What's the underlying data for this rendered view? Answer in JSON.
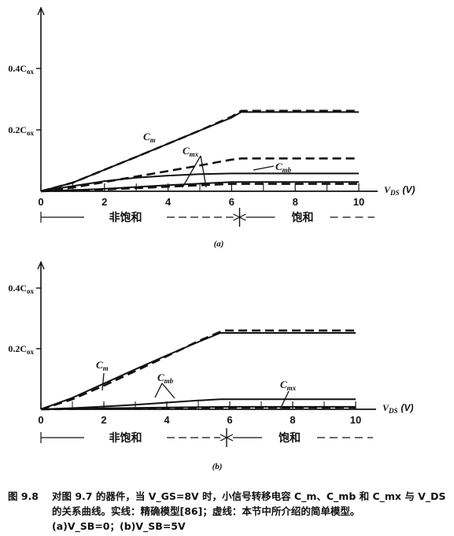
{
  "chart_data": [
    {
      "type": "line",
      "panel_label": "(a)",
      "xlabel": "V_DS (V)",
      "xlabel_main": "V",
      "xlabel_sub": "DS",
      "xlabel_unit": "(V)",
      "xlim": [
        0,
        10.5
      ],
      "ylim": [
        0,
        0.5
      ],
      "x_ticks": [
        "0",
        "2",
        "4",
        "6",
        "8",
        "10"
      ],
      "y_ticks": [
        "0.2C",
        "0.4C"
      ],
      "y_tick_sub": "ox",
      "y_tick_values": [
        0.2,
        0.4
      ],
      "regions": [
        "非饱和",
        "饱和"
      ],
      "region_boundary": 6.25,
      "series": [
        {
          "name": "C_m",
          "style": "solid",
          "x": [
            0,
            1,
            2,
            3,
            4,
            5,
            6,
            6.3,
            8,
            10
          ],
          "y": [
            0,
            0.028,
            0.07,
            0.112,
            0.155,
            0.198,
            0.24,
            0.258,
            0.258,
            0.258
          ]
        },
        {
          "name": "C_m",
          "style": "dashed",
          "x": [
            0,
            1,
            2,
            3,
            4,
            5,
            6,
            6.3,
            8,
            10
          ],
          "y": [
            0,
            0.028,
            0.07,
            0.112,
            0.155,
            0.198,
            0.243,
            0.262,
            0.262,
            0.262
          ]
        },
        {
          "name": "C_mb",
          "style": "dashed",
          "x": [
            0,
            1,
            2,
            3,
            4,
            5,
            6,
            6.3,
            8,
            10
          ],
          "y": [
            0,
            0.012,
            0.03,
            0.048,
            0.066,
            0.084,
            0.103,
            0.107,
            0.107,
            0.107
          ]
        },
        {
          "name": "C_mb",
          "style": "solid",
          "x": [
            0,
            1,
            2,
            3,
            4,
            5,
            6,
            6.3,
            8,
            10
          ],
          "y": [
            0,
            0.017,
            0.033,
            0.044,
            0.051,
            0.056,
            0.058,
            0.058,
            0.058,
            0.058
          ]
        },
        {
          "name": "C_mx",
          "style": "solid",
          "x": [
            0,
            2,
            4,
            6,
            8,
            10
          ],
          "y": [
            0,
            0.008,
            0.02,
            0.03,
            0.03,
            0.03
          ]
        },
        {
          "name": "C_mx",
          "style": "dashed",
          "x": [
            0,
            2,
            4,
            6,
            8,
            10
          ],
          "y": [
            0,
            0.006,
            0.015,
            0.024,
            0.024,
            0.024
          ]
        }
      ],
      "annotations": [
        {
          "base": "C",
          "sub": "m"
        },
        {
          "base": "C",
          "sub": "mx"
        },
        {
          "base": "C",
          "sub": "mb"
        }
      ]
    },
    {
      "type": "line",
      "panel_label": "(b)",
      "xlabel": "V_DS (V)",
      "xlabel_main": "V",
      "xlabel_sub": "DS",
      "xlabel_unit": "(V)",
      "xlim": [
        0,
        10.5
      ],
      "ylim": [
        0,
        0.5
      ],
      "x_ticks": [
        "0",
        "2",
        "4",
        "6",
        "8",
        "10"
      ],
      "y_ticks": [
        "0.2C",
        "0.4C"
      ],
      "y_tick_sub": "ox",
      "y_tick_values": [
        0.2,
        0.4
      ],
      "regions": [
        "非饱和",
        "饱和"
      ],
      "region_boundary": 5.9,
      "series": [
        {
          "name": "C_m",
          "style": "solid",
          "x": [
            0,
            1,
            2,
            3,
            4,
            5,
            5.7,
            8,
            10
          ],
          "y": [
            0,
            0.038,
            0.085,
            0.132,
            0.178,
            0.222,
            0.252,
            0.252,
            0.252
          ]
        },
        {
          "name": "C_m",
          "style": "dashed",
          "x": [
            0,
            1,
            2,
            3,
            4,
            5,
            5.8,
            8,
            10
          ],
          "y": [
            0,
            0.033,
            0.078,
            0.126,
            0.175,
            0.225,
            0.26,
            0.26,
            0.26
          ]
        },
        {
          "name": "C_mb",
          "style": "solid",
          "x": [
            0,
            1,
            2,
            3,
            4,
            5,
            5.7,
            8,
            10
          ],
          "y": [
            0,
            0.004,
            0.009,
            0.015,
            0.022,
            0.029,
            0.033,
            0.033,
            0.033
          ]
        },
        {
          "name": "C_mx",
          "style": "solid",
          "x": [
            0,
            2,
            4,
            6,
            8,
            10
          ],
          "y": [
            0,
            0.003,
            0.006,
            0.008,
            0.008,
            0.008
          ]
        },
        {
          "name": "C_mx",
          "style": "dashed",
          "x": [
            0,
            2,
            4,
            6,
            8,
            10
          ],
          "y": [
            0,
            0.002,
            0.004,
            0.006,
            0.006,
            0.006
          ]
        }
      ],
      "annotations": [
        {
          "base": "C",
          "sub": "m"
        },
        {
          "base": "C",
          "sub": "mb"
        },
        {
          "base": "C",
          "sub": "mx"
        }
      ]
    }
  ],
  "caption": {
    "number": "图 9.8",
    "line1": "对图 9.7 的器件，当 V_GS=8V 时，小信号转移电容 C_m、C_mb 和 C_mx 与 V_DS",
    "line2": "的关系曲线。实线：精确模型[86]；虚线：本节中所介绍的简单模型。",
    "line3": "(a)V_SB=0；(b)V_SB=5V"
  }
}
